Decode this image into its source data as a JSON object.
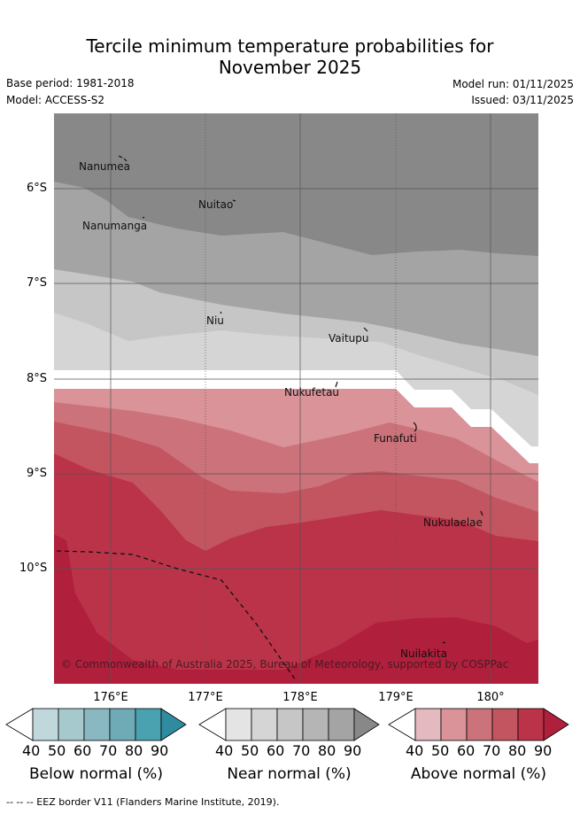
{
  "title_line1": "Tercile minimum temperature probabilities for",
  "title_line2": "November 2025",
  "base_period": "Base period: 1981-2018",
  "model": "Model: ACCESS-S2",
  "model_run": "Model run: 01/11/2025",
  "issued": "Issued: 03/11/2025",
  "lat_labels": [
    "6°S",
    "7°S",
    "8°S",
    "9°S",
    "10°S"
  ],
  "lon_labels": [
    "176°E",
    "177°E",
    "178°E",
    "179°E",
    "180°"
  ],
  "places": {
    "nanumea": "Nanumea",
    "nuitao": "Nuitao",
    "nanumanga": "Nanumanga",
    "niu": "Niu",
    "vaitupu": "Vaitupu",
    "nukufetau": "Nukufetau",
    "funafuti": "Funafuti",
    "nukulaelae": "Nukulaelae",
    "nuilakita": "Nuilakita"
  },
  "copyright": "© Commonwealth of Australia 2025, Bureau of Meteorology, supported by COSPPac",
  "colorbars": {
    "ticks": [
      "40",
      "50",
      "60",
      "70",
      "80",
      "90"
    ],
    "below": {
      "title": "Below normal (%)",
      "colors": [
        "#ffffff",
        "#c0d8dc",
        "#a6c9ce",
        "#89b8c2",
        "#6eabb7",
        "#4aa1b0",
        "#2e8ba0"
      ]
    },
    "near": {
      "title": "Near normal (%)",
      "colors": [
        "#ffffff",
        "#e4e4e4",
        "#d5d5d5",
        "#c6c6c6",
        "#b5b5b5",
        "#a4a4a4",
        "#888888"
      ]
    },
    "above": {
      "title": "Above normal (%)",
      "colors": [
        "#ffffff",
        "#e4b9bf",
        "#d99399",
        "#cc727a",
        "#c2555f",
        "#bb3349",
        "#b01f3c"
      ]
    }
  },
  "footer": "--  --  -- EEZ border V11 (Flanders Marine Institute, 2019)."
}
